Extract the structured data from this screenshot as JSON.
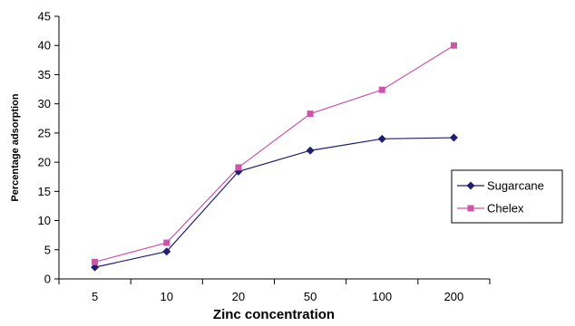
{
  "chart_data": {
    "type": "line",
    "title": "",
    "xlabel": "Zinc concentration",
    "ylabel": "Percentage adsorption",
    "categories": [
      "5",
      "10",
      "20",
      "50",
      "100",
      "200"
    ],
    "ylim": [
      0,
      45
    ],
    "yticks": [
      "0",
      "5",
      "10",
      "15",
      "20",
      "25",
      "30",
      "35",
      "40",
      "45"
    ],
    "grid": false,
    "legend_position": "right",
    "series": [
      {
        "name": "Sugarcane",
        "color": "#1f1f6e",
        "marker": "diamond",
        "values": [
          2.0,
          4.7,
          18.4,
          22.0,
          24.0,
          24.2
        ]
      },
      {
        "name": "Chelex",
        "color": "#cc55aa",
        "marker": "square",
        "values": [
          2.9,
          6.2,
          19.1,
          28.3,
          32.4,
          40.0
        ]
      }
    ]
  }
}
